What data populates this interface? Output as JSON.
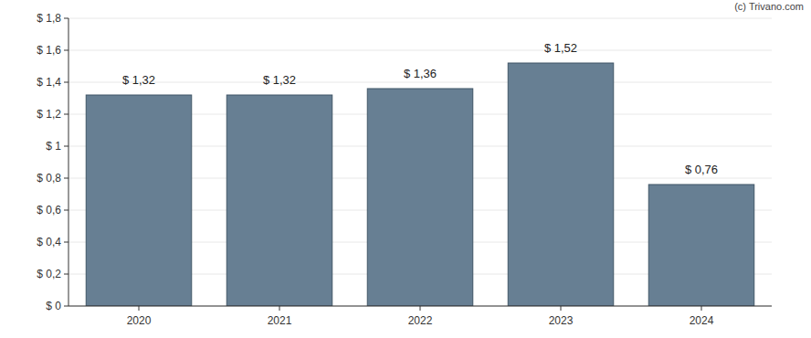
{
  "chart_data": {
    "type": "bar",
    "categories": [
      "2020",
      "2021",
      "2022",
      "2023",
      "2024"
    ],
    "values": [
      1.32,
      1.32,
      1.36,
      1.52,
      0.76
    ],
    "value_labels": [
      "$ 1,32",
      "$ 1,32",
      "$ 1,36",
      "$ 1,52",
      "$ 0,76"
    ],
    "color": "#677f93",
    "ylim": [
      0,
      1.8
    ],
    "yticks": [
      {
        "value": 0,
        "label": "$ 0"
      },
      {
        "value": 0.2,
        "label": "$ 0,2"
      },
      {
        "value": 0.4,
        "label": "$ 0,4"
      },
      {
        "value": 0.6,
        "label": "$ 0,6"
      },
      {
        "value": 0.8,
        "label": "$ 0,8"
      },
      {
        "value": 1,
        "label": "$ 1"
      },
      {
        "value": 1.2,
        "label": "$ 1,2"
      },
      {
        "value": 1.4,
        "label": "$ 1,4"
      },
      {
        "value": 1.6,
        "label": "$ 1,6"
      },
      {
        "value": 1.8,
        "label": "$ 1,8"
      }
    ],
    "grid": true,
    "data_labels": true,
    "annotations": [
      "(c) Trivano.com"
    ]
  }
}
